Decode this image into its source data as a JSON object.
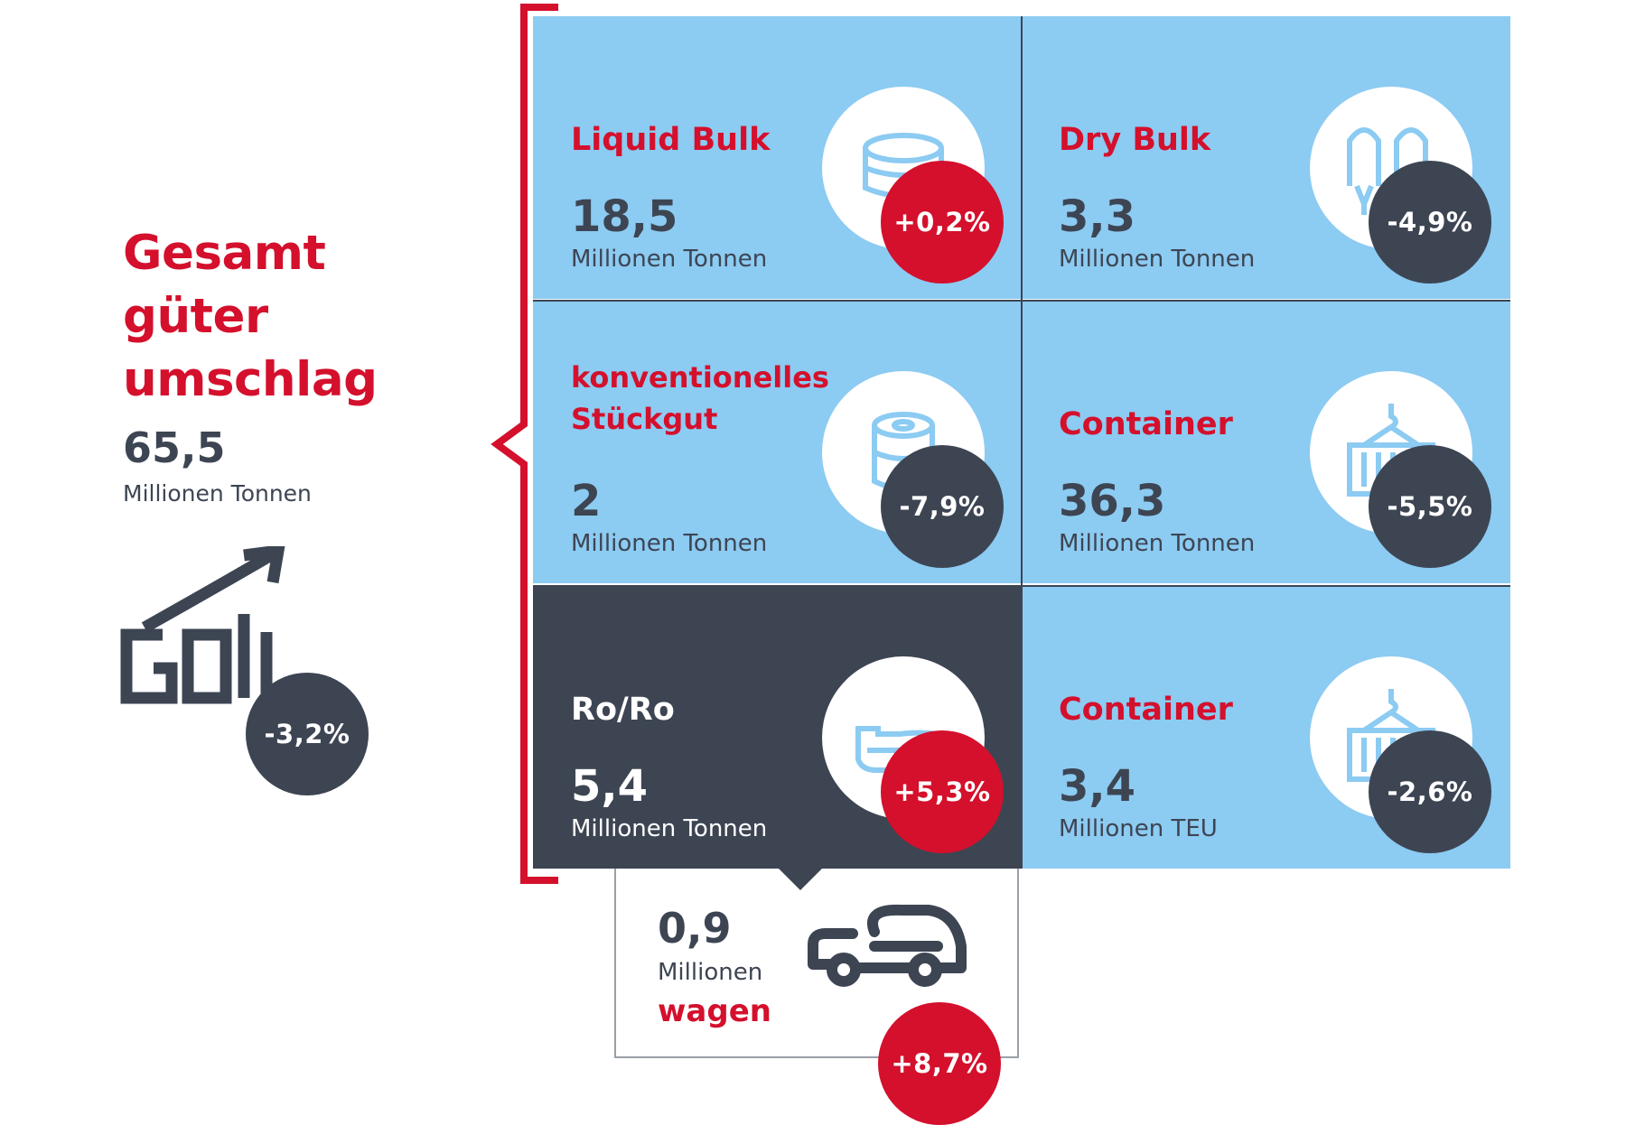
{
  "summary": {
    "title_lines": [
      "Gesamt",
      "güter",
      "umschlag"
    ],
    "value": "65,5",
    "unit": "Millionen Tonnen",
    "change": "-3,2%",
    "icon": "growth-chart-icon"
  },
  "tiles": [
    {
      "title": "Liquid Bulk",
      "value": "18,5",
      "unit": "Millionen Tonnen",
      "change": "+0,2%",
      "change_color": "#d4102c",
      "icon": "tank-icon"
    },
    {
      "title": "Dry Bulk",
      "value": "3,3",
      "unit": "Millionen Tonnen",
      "change": "-4,9%",
      "change_color": "#3d4553",
      "icon": "silo-icon"
    },
    {
      "title_lines": [
        "konventionelles",
        "Stückgut"
      ],
      "value": "2",
      "unit": "Millionen Tonnen",
      "change": "-7,9%",
      "change_color": "#3d4553",
      "icon": "paper-roll-icon"
    },
    {
      "title": "Container",
      "value": "36,3",
      "unit": "Millionen Tonnen",
      "change": "-5,5%",
      "change_color": "#3d4553",
      "icon": "container-crane-icon"
    },
    {
      "title": "Ro/Ro",
      "value": "5,4",
      "unit": "Millionen Tonnen",
      "change": "+5,3%",
      "change_color": "#d4102c",
      "icon": "ship-icon"
    },
    {
      "title": "Container",
      "value": "3,4",
      "unit": "Millionen TEU",
      "change": "-2,6%",
      "change_color": "#3d4553",
      "icon": "container-crane-icon"
    }
  ],
  "wagen": {
    "value": "0,9",
    "unit_line1": "Millionen",
    "unit_line2": "wagen",
    "change": "+8,7%",
    "icon": "car-icon"
  },
  "colors": {
    "red": "#d4102c",
    "dark": "#3d4553",
    "light_blue": "#8ccbf2"
  }
}
